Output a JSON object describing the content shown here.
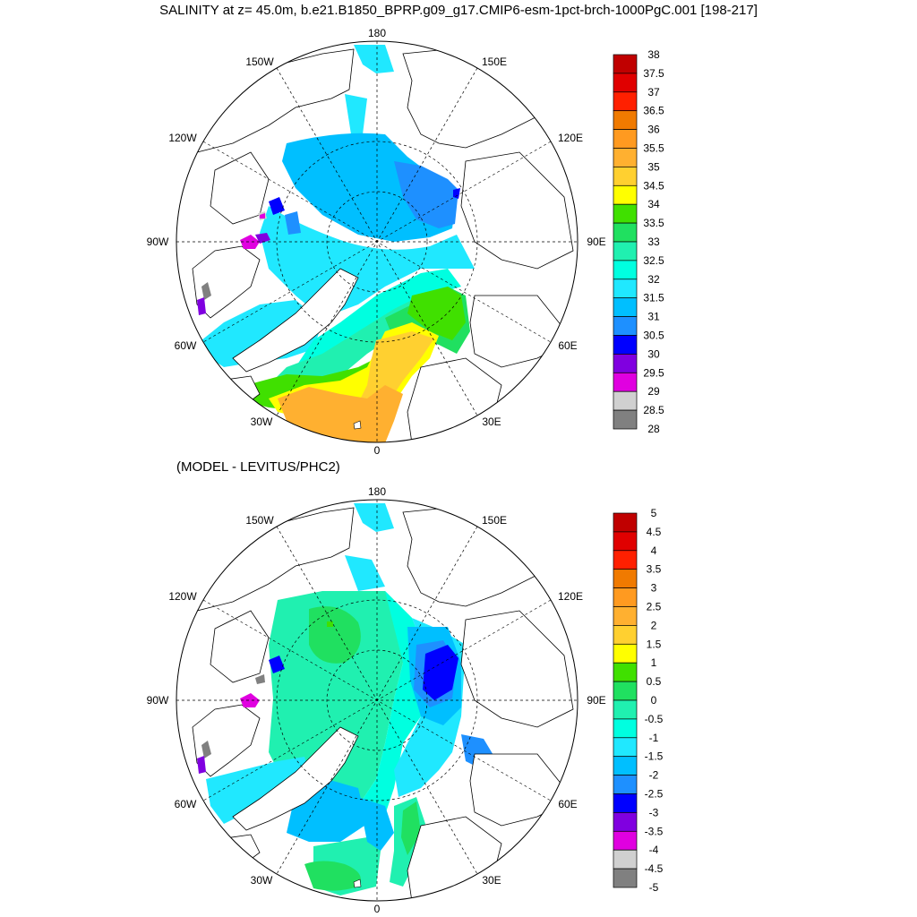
{
  "title": "SALINITY at z=  45.0m, b.e21.B1850_BPRP.g09_g17.CMIP6-esm-1pct-brch-1000PgC.001 [198-217]",
  "subtitle": "(MODEL - LEVITUS/PHC2)",
  "lon_labels": [
    "180",
    "150E",
    "120E",
    "90E",
    "60E",
    "30E",
    "0",
    "30W",
    "60W",
    "90W",
    "120W",
    "150W"
  ],
  "panels": [
    {
      "name": "salinity",
      "colorbar_labels": [
        "38",
        "37.5",
        "37",
        "36.5",
        "36",
        "35.5",
        "35",
        "34.5",
        "34",
        "33.5",
        "33",
        "32.5",
        "32",
        "31.5",
        "31",
        "30.5",
        "30",
        "29.5",
        "29",
        "28.5",
        "28"
      ],
      "colorbar_colors": [
        "#c00000",
        "#e00000",
        "#ff2000",
        "#f07a00",
        "#ff9a20",
        "#ffb030",
        "#ffd030",
        "#ffff00",
        "#40e000",
        "#20e060",
        "#20f0b0",
        "#00ffe0",
        "#20e8ff",
        "#00bfff",
        "#1e90ff",
        "#0000ff",
        "#8000e0",
        "#e000e0",
        "#d0d0d0",
        "#808080"
      ]
    },
    {
      "name": "difference",
      "colorbar_labels": [
        "5",
        "4.5",
        "4",
        "3.5",
        "3",
        "2.5",
        "2",
        "1.5",
        "1",
        "0.5",
        "0",
        "-0.5",
        "-1",
        "-1.5",
        "-2",
        "-2.5",
        "-3",
        "-3.5",
        "-4",
        "-4.5",
        "-5"
      ],
      "colorbar_colors": [
        "#c00000",
        "#e00000",
        "#ff2000",
        "#f07a00",
        "#ff9a20",
        "#ffb030",
        "#ffd030",
        "#ffff00",
        "#40e000",
        "#20e060",
        "#20f0b0",
        "#00ffe0",
        "#20e8ff",
        "#00bfff",
        "#1e90ff",
        "#0000ff",
        "#8000e0",
        "#e000e0",
        "#d0d0d0",
        "#808080"
      ]
    }
  ]
}
